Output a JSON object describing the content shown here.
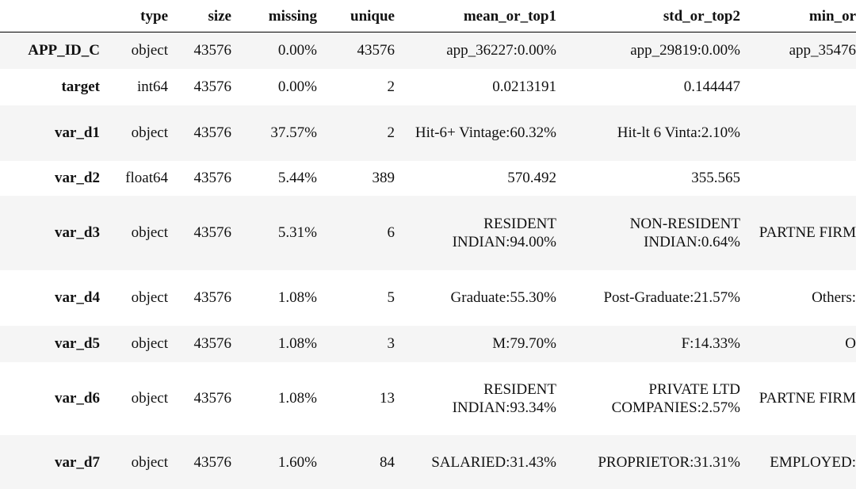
{
  "table": {
    "columns": [
      null,
      "type",
      "size",
      "missing",
      "unique",
      "mean_or_top1",
      "std_or_top2",
      "min_or"
    ],
    "rows": [
      [
        "APP_ID_C",
        "object",
        "43576",
        "0.00%",
        "43576",
        "app_36227:0.00%",
        "app_29819:0.00%",
        "app_35476"
      ],
      [
        "target",
        "int64",
        "43576",
        "0.00%",
        "2",
        "0.0213191",
        "0.144447",
        null
      ],
      [
        "var_d1",
        "object",
        "43576",
        "37.57%",
        "2",
        "Hit-6+ Vintage:60.32%",
        "Hit-lt 6 Vinta:2.10%",
        null
      ],
      [
        "var_d2",
        "float64",
        "43576",
        "5.44%",
        "389",
        "570.492",
        "355.565",
        null
      ],
      [
        "var_d3",
        "object",
        "43576",
        "5.31%",
        "6",
        "RESIDENT INDIAN:94.00%",
        "NON-RESIDENT INDIAN:0.64%",
        "PARTNE FIRM"
      ],
      [
        "var_d4",
        "object",
        "43576",
        "1.08%",
        "5",
        "Graduate:55.30%",
        "Post-Graduate:21.57%",
        "Others:"
      ],
      [
        "var_d5",
        "object",
        "43576",
        "1.08%",
        "3",
        "M:79.70%",
        "F:14.33%",
        "O"
      ],
      [
        "var_d6",
        "object",
        "43576",
        "1.08%",
        "13",
        "RESIDENT INDIAN:93.34%",
        "PRIVATE LTD COMPANIES:2.57%",
        "PARTNE FIRM"
      ],
      [
        "var_d7",
        "object",
        "43576",
        "1.60%",
        "84",
        "SALARIED:31.43%",
        "PROPRIETOR:31.31%",
        "EMPLOYED:"
      ]
    ]
  }
}
